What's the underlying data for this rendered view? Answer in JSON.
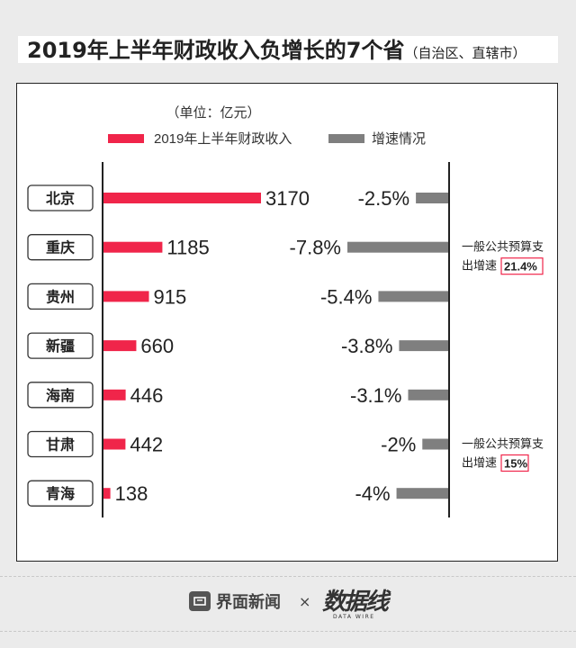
{
  "title": {
    "main": "2019年上半年财政收入负增长的7个省",
    "sub": "（自治区、直辖市）"
  },
  "chart_data": {
    "type": "bar",
    "unit_label": "（单位：亿元）",
    "categories": [
      "北京",
      "重庆",
      "贵州",
      "新疆",
      "海南",
      "甘肃",
      "青海"
    ],
    "series": [
      {
        "name": "2019年上半年财政收入",
        "color": "#f0254a",
        "values": [
          3170,
          1185,
          915,
          660,
          446,
          442,
          138
        ],
        "labels": [
          "3170",
          "1185",
          "915",
          "660",
          "446",
          "442",
          "138"
        ]
      },
      {
        "name": "增速情况",
        "color": "#7f7f7f",
        "values": [
          -2.5,
          -7.8,
          -5.4,
          -3.8,
          -3.1,
          -2,
          -4
        ],
        "labels": [
          "-2.5%",
          "-7.8%",
          "-5.4%",
          "-3.8%",
          "-3.1%",
          "-2%",
          "-4%"
        ]
      }
    ],
    "annotations": [
      {
        "category": "重庆",
        "line1": "一般公共预算支",
        "prefix": "出增速",
        "highlight": "21.4%"
      },
      {
        "category": "甘肃",
        "line1": "一般公共预算支",
        "prefix": "出增速",
        "highlight": "15%"
      }
    ]
  },
  "footer": {
    "brand": "界面新闻",
    "times": "×",
    "partner": "数据线",
    "partner_sub": "DATA WIRE"
  },
  "colors": {
    "accent_red": "#f0254a",
    "gray": "#7f7f7f",
    "highlight_border": "#f0254a"
  }
}
